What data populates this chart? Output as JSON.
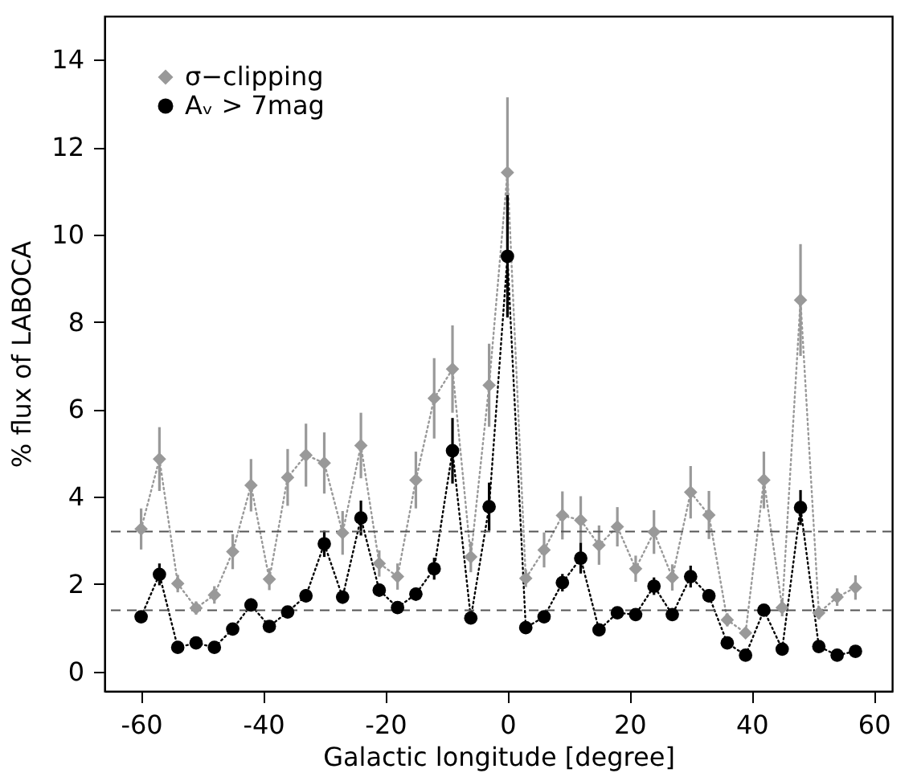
{
  "chart_data": {
    "type": "line",
    "xlabel": "Galactic longitude [degree]",
    "ylabel": "% flux of LABOCA",
    "x": [
      -60,
      -57,
      -54,
      -51,
      -48,
      -45,
      -42,
      -39,
      -36,
      -33,
      -30,
      -27,
      -24,
      -21,
      -18,
      -15,
      -12,
      -9,
      -6,
      -3,
      0,
      3,
      6,
      9,
      12,
      15,
      18,
      21,
      24,
      27,
      30,
      33,
      36,
      39,
      42,
      45,
      48,
      51,
      54,
      57
    ],
    "series": [
      {
        "name": "σ−clipping",
        "color": "#999999",
        "marker": "diamond",
        "line_style": "dotted",
        "values": [
          3.26,
          4.86,
          2.01,
          1.45,
          1.75,
          2.74,
          4.26,
          2.11,
          4.44,
          4.95,
          4.77,
          3.17,
          5.17,
          2.47,
          2.17,
          4.38,
          6.25,
          6.92,
          2.62,
          6.55,
          11.42,
          2.13,
          2.78,
          3.57,
          3.46,
          2.89,
          3.31,
          2.35,
          3.19,
          2.15,
          4.1,
          3.58,
          1.18,
          0.88,
          4.38,
          1.46,
          8.5,
          1.34,
          1.7,
          1.92
        ],
        "errors": [
          0.47,
          0.73,
          0.2,
          0.15,
          0.2,
          0.4,
          0.6,
          0.25,
          0.65,
          0.72,
          0.7,
          0.5,
          0.75,
          0.3,
          0.3,
          0.65,
          0.92,
          1.0,
          0.35,
          0.95,
          1.72,
          0.2,
          0.4,
          0.55,
          0.55,
          0.45,
          0.45,
          0.3,
          0.5,
          0.3,
          0.6,
          0.55,
          0.15,
          0.1,
          0.65,
          0.2,
          1.28,
          0.15,
          0.2,
          0.28
        ]
      },
      {
        "name": "Aᵥ > 7mag",
        "color": "#000000",
        "marker": "circle",
        "line_style": "dotted",
        "values": [
          1.25,
          2.22,
          0.55,
          0.65,
          0.55,
          0.97,
          1.52,
          1.03,
          1.36,
          1.73,
          2.92,
          1.7,
          3.51,
          1.86,
          1.46,
          1.77,
          2.35,
          5.05,
          1.22,
          3.77,
          9.5,
          1.0,
          1.25,
          2.03,
          2.59,
          0.95,
          1.34,
          1.3,
          1.95,
          1.3,
          2.17,
          1.73,
          0.65,
          0.37,
          1.4,
          0.51,
          3.75,
          0.57,
          0.37,
          0.46
        ],
        "errors": [
          0.12,
          0.25,
          null,
          null,
          null,
          0.1,
          0.15,
          null,
          0.12,
          0.15,
          0.3,
          0.15,
          0.4,
          0.15,
          0.12,
          0.15,
          0.25,
          0.75,
          0.1,
          0.55,
          1.4,
          null,
          0.1,
          0.2,
          0.35,
          null,
          0.1,
          null,
          0.2,
          0.1,
          0.25,
          0.15,
          null,
          null,
          0.1,
          null,
          0.4,
          null,
          null,
          null
        ]
      }
    ],
    "ref_lines": [
      {
        "axis": "y",
        "value": 3.2,
        "color": "#555555",
        "line_style": "dashed"
      },
      {
        "axis": "y",
        "value": 1.4,
        "color": "#555555",
        "line_style": "dashed"
      }
    ],
    "xlim": [
      -66,
      63
    ],
    "ylim": [
      -0.45,
      15
    ],
    "xticks": [
      -60,
      -40,
      -20,
      0,
      20,
      40,
      60
    ],
    "yticks": [
      0,
      2,
      4,
      6,
      8,
      10,
      12,
      14
    ],
    "legend": "top left",
    "grid": false
  }
}
